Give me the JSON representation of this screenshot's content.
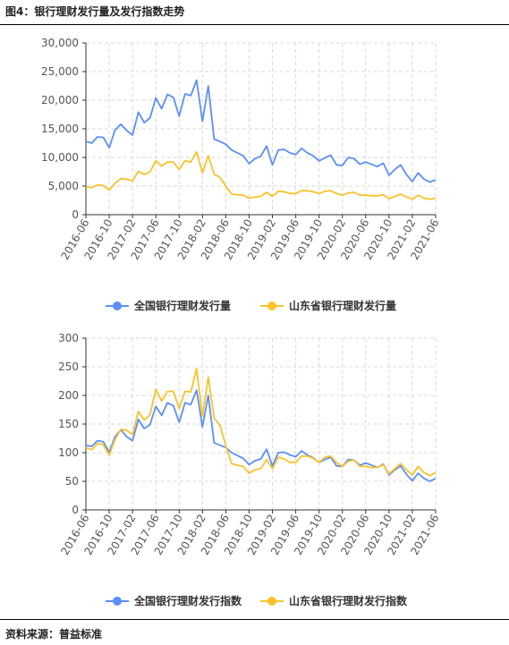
{
  "figure": {
    "title": "图4：银行理财发行量及发行指数走势",
    "source": "资料来源：普益标准"
  },
  "colors": {
    "blue": "#5B8FF9",
    "yellow": "#FAC22B",
    "grid": "#d9d9d9",
    "axis": "#333333"
  },
  "chart_data": [
    {
      "type": "line",
      "title": "",
      "xlabel": "",
      "ylabel": "",
      "ylim": [
        0,
        30000
      ],
      "yticks": [
        0,
        5000,
        10000,
        15000,
        20000,
        25000,
        30000
      ],
      "ytick_labels": [
        "0",
        "5,000",
        "10,000",
        "15,000",
        "20,000",
        "25,000",
        "30,000"
      ],
      "xtick_labels": [
        "2016-06",
        "2016-10",
        "2017-02",
        "2017-06",
        "2017-10",
        "2018-02",
        "2018-06",
        "2018-10",
        "2019-02",
        "2019-06",
        "2019-10",
        "2020-02",
        "2020-06",
        "2020-10",
        "2021-02",
        "2021-06"
      ],
      "grid": true,
      "legend_position": "bottom",
      "x": [
        "2016-06",
        "2016-07",
        "2016-08",
        "2016-09",
        "2016-10",
        "2016-11",
        "2016-12",
        "2017-01",
        "2017-02",
        "2017-03",
        "2017-04",
        "2017-05",
        "2017-06",
        "2017-07",
        "2017-08",
        "2017-09",
        "2017-10",
        "2017-11",
        "2017-12",
        "2018-01",
        "2018-02",
        "2018-03",
        "2018-04",
        "2018-05",
        "2018-06",
        "2018-07",
        "2018-08",
        "2018-09",
        "2018-10",
        "2018-11",
        "2018-12",
        "2019-01",
        "2019-02",
        "2019-03",
        "2019-04",
        "2019-05",
        "2019-06",
        "2019-07",
        "2019-08",
        "2019-09",
        "2019-10",
        "2019-11",
        "2019-12",
        "2020-01",
        "2020-02",
        "2020-03",
        "2020-04",
        "2020-05",
        "2020-06",
        "2020-07",
        "2020-08",
        "2020-09",
        "2020-10",
        "2020-11",
        "2020-12",
        "2021-01",
        "2021-02",
        "2021-03",
        "2021-04",
        "2021-05",
        "2021-06"
      ],
      "series": [
        {
          "name": "全国银行理财发行量",
          "color": "#5B8FF9",
          "values": [
            12800,
            12500,
            13600,
            13500,
            11700,
            14800,
            15800,
            14700,
            13900,
            17900,
            16100,
            16900,
            20400,
            18500,
            21000,
            20500,
            17200,
            21100,
            20800,
            23500,
            16300,
            22500,
            13200,
            12800,
            12300,
            11300,
            10800,
            10300,
            8900,
            9800,
            10200,
            12000,
            8700,
            11300,
            11400,
            10800,
            10500,
            11600,
            10800,
            10300,
            9400,
            9900,
            10400,
            8700,
            8600,
            10000,
            9800,
            8800,
            9200,
            8800,
            8400,
            9000,
            6900,
            7900,
            8700,
            7000,
            5800,
            7300,
            6200,
            5700,
            6100
          ]
        },
        {
          "name": "山东省银行理财发行量",
          "color": "#FAC22B",
          "values": [
            4900,
            4700,
            5200,
            5100,
            4300,
            5500,
            6300,
            6200,
            5900,
            7600,
            7000,
            7500,
            9400,
            8500,
            9200,
            9200,
            7900,
            9400,
            9200,
            11000,
            7300,
            10300,
            7100,
            6500,
            5000,
            3600,
            3500,
            3400,
            2900,
            3100,
            3200,
            3900,
            3200,
            4100,
            4000,
            3700,
            3700,
            4200,
            4200,
            4000,
            3700,
            4100,
            4200,
            3700,
            3400,
            3800,
            3900,
            3400,
            3400,
            3300,
            3300,
            3500,
            2800,
            3200,
            3600,
            3100,
            2700,
            3400,
            2900,
            2700,
            2900
          ]
        }
      ]
    },
    {
      "type": "line",
      "title": "",
      "xlabel": "",
      "ylabel": "",
      "ylim": [
        0,
        300
      ],
      "yticks": [
        0,
        50,
        100,
        150,
        200,
        250,
        300
      ],
      "ytick_labels": [
        "0",
        "50",
        "100",
        "150",
        "200",
        "250",
        "300"
      ],
      "xtick_labels": [
        "2016-06",
        "2016-10",
        "2017-02",
        "2017-06",
        "2017-10",
        "2018-02",
        "2018-06",
        "2018-10",
        "2019-02",
        "2019-06",
        "2019-10",
        "2020-02",
        "2020-06",
        "2020-10",
        "2021-02",
        "2021-06"
      ],
      "grid": true,
      "legend_position": "bottom",
      "x": [
        "2016-06",
        "2016-07",
        "2016-08",
        "2016-09",
        "2016-10",
        "2016-11",
        "2016-12",
        "2017-01",
        "2017-02",
        "2017-03",
        "2017-04",
        "2017-05",
        "2017-06",
        "2017-07",
        "2017-08",
        "2017-09",
        "2017-10",
        "2017-11",
        "2017-12",
        "2018-01",
        "2018-02",
        "2018-03",
        "2018-04",
        "2018-05",
        "2018-06",
        "2018-07",
        "2018-08",
        "2018-09",
        "2018-10",
        "2018-11",
        "2018-12",
        "2019-01",
        "2019-02",
        "2019-03",
        "2019-04",
        "2019-05",
        "2019-06",
        "2019-07",
        "2019-08",
        "2019-09",
        "2019-10",
        "2019-11",
        "2019-12",
        "2020-01",
        "2020-02",
        "2020-03",
        "2020-04",
        "2020-05",
        "2020-06",
        "2020-07",
        "2020-08",
        "2020-09",
        "2020-10",
        "2020-11",
        "2020-12",
        "2021-01",
        "2021-02",
        "2021-03",
        "2021-04",
        "2021-05",
        "2021-06"
      ],
      "series": [
        {
          "name": "全国银行理财发行指数",
          "color": "#5B8FF9",
          "values": [
            113,
            111,
            121,
            119,
            101,
            128,
            140,
            128,
            121,
            158,
            142,
            149,
            181,
            165,
            187,
            182,
            153,
            187,
            184,
            209,
            145,
            200,
            117,
            113,
            109,
            100,
            95,
            90,
            79,
            86,
            89,
            106,
            77,
            100,
            101,
            96,
            93,
            103,
            96,
            91,
            83,
            88,
            92,
            77,
            76,
            88,
            87,
            78,
            82,
            78,
            74,
            80,
            61,
            70,
            77,
            62,
            51,
            64,
            55,
            50,
            55
          ]
        },
        {
          "name": "山东省银行理财发行指数",
          "color": "#FAC22B",
          "values": [
            109,
            105,
            116,
            114,
            96,
            123,
            141,
            139,
            132,
            172,
            157,
            166,
            211,
            190,
            207,
            207,
            177,
            207,
            206,
            247,
            163,
            232,
            160,
            148,
            112,
            81,
            78,
            76,
            64,
            70,
            72,
            88,
            72,
            92,
            89,
            83,
            83,
            94,
            94,
            90,
            83,
            92,
            94,
            83,
            76,
            85,
            87,
            76,
            76,
            74,
            74,
            79,
            63,
            72,
            81,
            70,
            61,
            76,
            65,
            60,
            65
          ]
        }
      ]
    }
  ]
}
